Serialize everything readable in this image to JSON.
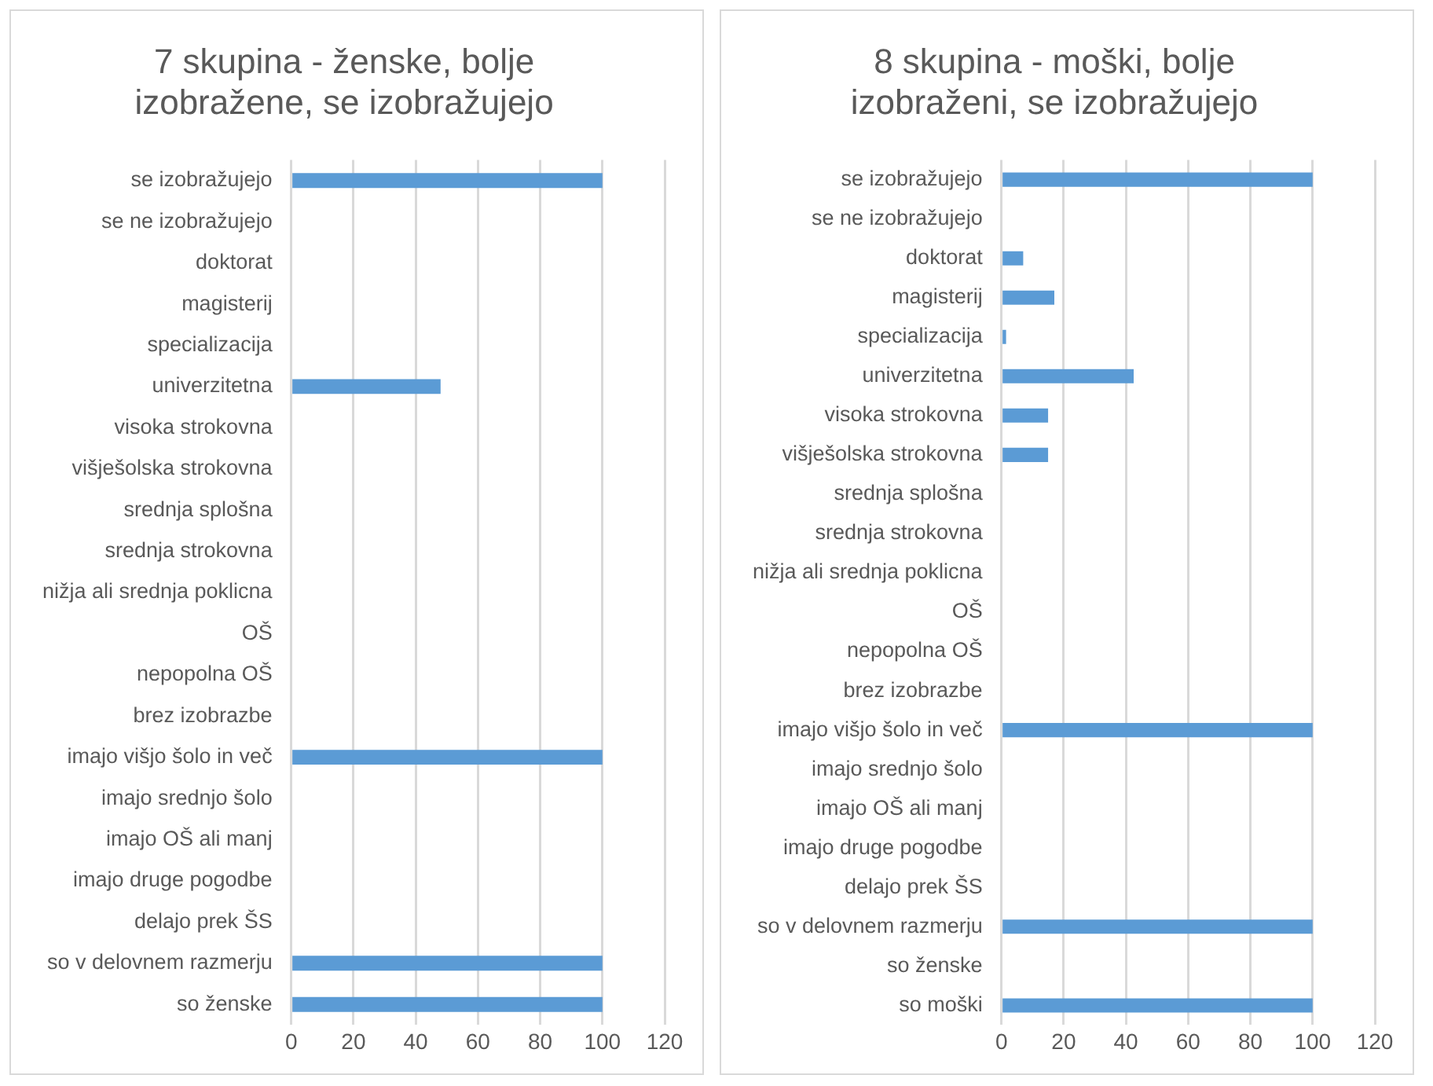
{
  "chart_data": [
    {
      "type": "bar",
      "orientation": "horizontal",
      "title": "7 skupina - ženske, bolje izobražene, se izobražujejo",
      "categories": [
        "se izobražujejo",
        "se ne izobražujejo",
        "doktorat",
        "magisterij",
        "specializacija",
        "univerzitetna",
        "visoka strokovna",
        "višješolska strokovna",
        "srednja splošna",
        "srednja strokovna",
        "nižja ali srednja poklicna",
        "OŠ",
        "nepopolna OŠ",
        "brez izobrazbe",
        "imajo višjo šolo in več",
        "imajo srednjo šolo",
        "imajo OŠ ali manj",
        "imajo druge pogodbe",
        "delajo prek ŠS",
        "so v delovnem razmerju",
        "so ženske"
      ],
      "values": [
        100,
        0,
        0,
        0,
        0,
        48,
        0,
        0,
        0,
        0,
        0,
        0,
        0,
        0,
        100,
        0,
        0,
        0,
        0,
        100,
        100
      ],
      "color": "#5b9bd5",
      "xlim": [
        0,
        120
      ],
      "xticks": [
        0,
        20,
        40,
        60,
        80,
        100,
        120
      ],
      "grid": "x",
      "legend": false
    },
    {
      "type": "bar",
      "orientation": "horizontal",
      "title": "8 skupina - moški, bolje izobraženi, se izobražujejo",
      "categories": [
        "se izobražujejo",
        "se ne izobražujejo",
        "doktorat",
        "magisterij",
        "specializacija",
        "univerzitetna",
        "visoka strokovna",
        "višješolska strokovna",
        "srednja splošna",
        "srednja strokovna",
        "nižja ali srednja poklicna",
        "OŠ",
        "nepopolna OŠ",
        "brez izobrazbe",
        "imajo višjo šolo in več",
        "imajo srednjo šolo",
        "imajo OŠ ali manj",
        "imajo druge pogodbe",
        "delajo prek ŠS",
        "so v delovnem razmerju",
        "so ženske",
        "so moški"
      ],
      "values": [
        100,
        0,
        7,
        17,
        1.5,
        42.5,
        15,
        15,
        0,
        0,
        0,
        0,
        0,
        0,
        100,
        0,
        0,
        0,
        0,
        100,
        0,
        100
      ],
      "color": "#5b9bd5",
      "xlim": [
        0,
        120
      ],
      "xticks": [
        0,
        20,
        40,
        60,
        80,
        100,
        120
      ],
      "grid": "x",
      "legend": false
    }
  ]
}
